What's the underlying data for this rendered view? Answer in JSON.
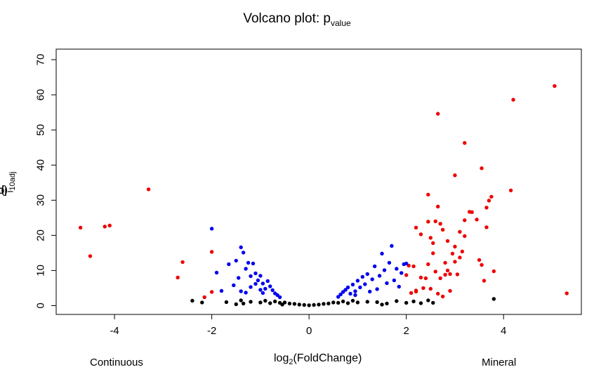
{
  "chart_data": {
    "type": "scatter",
    "title": {
      "main": "Volcano plot: p",
      "sub": "value"
    },
    "xlabel": {
      "prefix": "log",
      "sub": "2",
      "suffix": "(FoldChange)"
    },
    "ylabel": {
      "prefix": "−log",
      "sub1": "10",
      "mid": "(p",
      "sub2": "adj",
      "suffix": ")"
    },
    "xlim": [
      -5.2,
      5.6
    ],
    "ylim": [
      -2.5,
      73
    ],
    "xticks": [
      -4,
      -2,
      0,
      2,
      4
    ],
    "yticks": [
      0,
      10,
      20,
      30,
      40,
      50,
      60,
      70
    ],
    "group_labels": {
      "left": "Continuous",
      "right": "Mineral"
    },
    "colors": {
      "significant": "#ee0000",
      "fold_only": "#0000ee",
      "ns": "#000000"
    },
    "series": [
      {
        "color": "#ee0000",
        "points": [
          [
            -4.7,
            22.2
          ],
          [
            -4.2,
            22.5
          ],
          [
            -4.1,
            22.8
          ],
          [
            -4.5,
            14.1
          ],
          [
            -3.3,
            33.1
          ],
          [
            -2.6,
            12.4
          ],
          [
            -2.7,
            8.0
          ],
          [
            -2.0,
            15.3
          ],
          [
            -2.0,
            3.9
          ],
          [
            -2.15,
            2.4
          ],
          [
            2.05,
            11.4
          ],
          [
            2.15,
            11.2
          ],
          [
            2.2,
            22.2
          ],
          [
            2.3,
            20.3
          ],
          [
            2.45,
            31.6
          ],
          [
            2.5,
            19.3
          ],
          [
            2.45,
            23.9
          ],
          [
            2.6,
            24.0
          ],
          [
            2.65,
            28.2
          ],
          [
            2.7,
            23.3
          ],
          [
            2.75,
            21.6
          ],
          [
            2.65,
            54.6
          ],
          [
            2.55,
            17.8
          ],
          [
            2.45,
            11.8
          ],
          [
            2.4,
            7.8
          ],
          [
            2.3,
            8.0
          ],
          [
            2.35,
            5.0
          ],
          [
            2.2,
            4.0
          ],
          [
            2.1,
            3.6
          ],
          [
            2.5,
            4.8
          ],
          [
            2.6,
            9.7
          ],
          [
            2.7,
            7.8
          ],
          [
            2.8,
            12.2
          ],
          [
            2.85,
            10.0
          ],
          [
            2.9,
            9.0
          ],
          [
            2.95,
            14.8
          ],
          [
            3.0,
            12.5
          ],
          [
            2.75,
            2.6
          ],
          [
            2.65,
            3.4
          ],
          [
            2.9,
            4.2
          ],
          [
            3.0,
            37.1
          ],
          [
            3.1,
            21.0
          ],
          [
            3.15,
            15.4
          ],
          [
            3.1,
            13.7
          ],
          [
            3.2,
            46.3
          ],
          [
            3.2,
            19.8
          ],
          [
            3.2,
            24.3
          ],
          [
            3.3,
            26.7
          ],
          [
            3.35,
            26.6
          ],
          [
            3.45,
            24.5
          ],
          [
            3.05,
            8.9
          ],
          [
            3.5,
            13.0
          ],
          [
            3.55,
            39.1
          ],
          [
            3.55,
            11.6
          ],
          [
            3.6,
            7.1
          ],
          [
            3.65,
            22.3
          ],
          [
            3.65,
            27.9
          ],
          [
            3.7,
            29.9
          ],
          [
            3.75,
            31.0
          ],
          [
            3.8,
            9.8
          ],
          [
            4.15,
            32.8
          ],
          [
            4.2,
            58.6
          ],
          [
            5.05,
            62.5
          ],
          [
            5.3,
            3.5
          ],
          [
            2.85,
            18.4
          ],
          [
            3.0,
            16.8
          ],
          [
            2.8,
            8.8
          ],
          [
            2.55,
            14.9
          ],
          [
            2.2,
            4.3
          ],
          [
            2.0,
            8.7
          ]
        ]
      },
      {
        "color": "#0000ee",
        "points": [
          [
            -2.0,
            21.9
          ],
          [
            -1.8,
            4.2
          ],
          [
            -1.65,
            11.8
          ],
          [
            -1.55,
            5.8
          ],
          [
            -1.4,
            16.6
          ],
          [
            -1.35,
            15.1
          ],
          [
            -1.3,
            10.5
          ],
          [
            -1.25,
            12.2
          ],
          [
            -1.15,
            12.0
          ],
          [
            -1.1,
            9.2
          ],
          [
            -1.05,
            7.2
          ],
          [
            -1.0,
            8.5
          ],
          [
            -0.95,
            6.3
          ],
          [
            -0.9,
            4.8
          ],
          [
            -0.85,
            7.0
          ],
          [
            -1.9,
            9.4
          ],
          [
            -1.45,
            7.9
          ],
          [
            -1.4,
            4.1
          ],
          [
            -1.2,
            8.4
          ],
          [
            -1.1,
            6.2
          ],
          [
            -1.0,
            4.5
          ],
          [
            -0.95,
            3.6
          ],
          [
            -0.8,
            5.5
          ],
          [
            -0.75,
            4.4
          ],
          [
            -0.7,
            3.5
          ],
          [
            -0.65,
            3.0
          ],
          [
            -0.6,
            2.4
          ],
          [
            -1.3,
            3.7
          ],
          [
            -1.5,
            12.8
          ],
          [
            -1.2,
            5.3
          ],
          [
            0.6,
            2.5
          ],
          [
            0.65,
            3.2
          ],
          [
            0.7,
            3.9
          ],
          [
            0.75,
            4.5
          ],
          [
            0.8,
            5.2
          ],
          [
            0.85,
            3.4
          ],
          [
            0.9,
            6.0
          ],
          [
            0.95,
            4.1
          ],
          [
            1.0,
            7.1
          ],
          [
            1.05,
            5.2
          ],
          [
            1.1,
            8.2
          ],
          [
            1.15,
            6.1
          ],
          [
            1.2,
            9.0
          ],
          [
            1.3,
            7.5
          ],
          [
            1.35,
            11.2
          ],
          [
            1.4,
            4.7
          ],
          [
            1.45,
            8.5
          ],
          [
            1.5,
            14.8
          ],
          [
            1.55,
            10.1
          ],
          [
            1.6,
            6.4
          ],
          [
            1.65,
            12.2
          ],
          [
            1.7,
            17.0
          ],
          [
            1.75,
            7.2
          ],
          [
            1.8,
            10.5
          ],
          [
            1.85,
            5.4
          ],
          [
            1.9,
            9.3
          ],
          [
            1.95,
            11.8
          ],
          [
            2.0,
            12.0
          ],
          [
            1.25,
            4.0
          ],
          [
            0.95,
            3.0
          ]
        ]
      },
      {
        "color": "#000000",
        "points": [
          [
            -2.4,
            1.4
          ],
          [
            -2.2,
            0.9
          ],
          [
            -1.7,
            1.0
          ],
          [
            -1.4,
            1.5
          ],
          [
            -1.35,
            0.6
          ],
          [
            -1.2,
            1.1
          ],
          [
            -1.0,
            0.9
          ],
          [
            -0.9,
            1.4
          ],
          [
            -0.8,
            0.7
          ],
          [
            -0.7,
            1.2
          ],
          [
            -0.6,
            0.8
          ],
          [
            -0.5,
            0.9
          ],
          [
            -0.4,
            0.6
          ],
          [
            -0.3,
            0.5
          ],
          [
            -0.2,
            0.3
          ],
          [
            -0.1,
            0.2
          ],
          [
            0.0,
            0.1
          ],
          [
            0.1,
            0.2
          ],
          [
            0.2,
            0.3
          ],
          [
            0.3,
            0.5
          ],
          [
            0.4,
            0.6
          ],
          [
            0.5,
            0.9
          ],
          [
            0.6,
            0.8
          ],
          [
            0.7,
            1.2
          ],
          [
            0.8,
            0.7
          ],
          [
            0.9,
            1.4
          ],
          [
            1.0,
            0.9
          ],
          [
            1.2,
            1.1
          ],
          [
            1.4,
            1.0
          ],
          [
            1.6,
            0.6
          ],
          [
            1.8,
            1.3
          ],
          [
            2.0,
            0.8
          ],
          [
            2.15,
            1.2
          ],
          [
            2.3,
            0.7
          ],
          [
            2.45,
            1.5
          ],
          [
            2.55,
            0.8
          ],
          [
            3.8,
            1.9
          ],
          [
            -1.5,
            0.4
          ],
          [
            1.5,
            0.3
          ],
          [
            -0.55,
            0.3
          ]
        ]
      }
    ]
  }
}
